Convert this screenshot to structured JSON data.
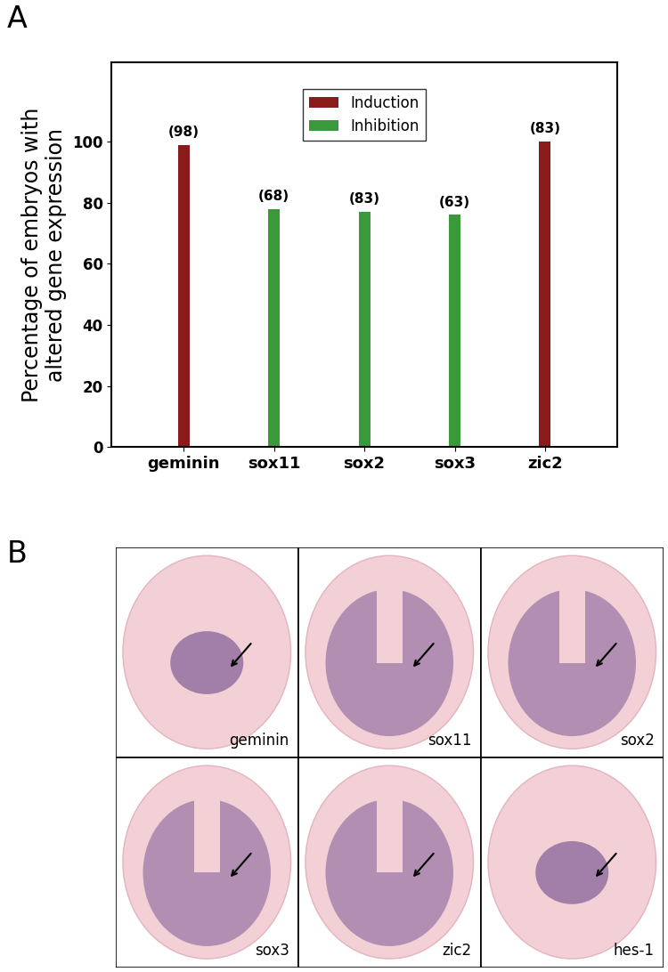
{
  "chart_data": {
    "type": "bar",
    "panel_label": "A",
    "ylabel": "Percentage of embryos with\naltered gene expression",
    "categories": [
      "geminin",
      "sox11",
      "sox2",
      "sox3",
      "zic2"
    ],
    "series": [
      {
        "name": "Induction",
        "color": "#8b1a1a",
        "values": [
          99,
          null,
          null,
          null,
          100
        ]
      },
      {
        "name": "Inhibition",
        "color": "#3a9a3a",
        "values": [
          null,
          78,
          77,
          76,
          null
        ]
      }
    ],
    "annotations": [
      "(98)",
      "(68)",
      "(83)",
      "(63)",
      "(83)"
    ],
    "ylim": [
      0,
      126
    ],
    "yticks": [
      0,
      20,
      40,
      60,
      80,
      100
    ],
    "legend": "upper center"
  },
  "panel_b": {
    "panel_label": "B",
    "images": [
      "geminin",
      "sox11",
      "sox2",
      "sox3",
      "zic2",
      "hes-1"
    ]
  }
}
